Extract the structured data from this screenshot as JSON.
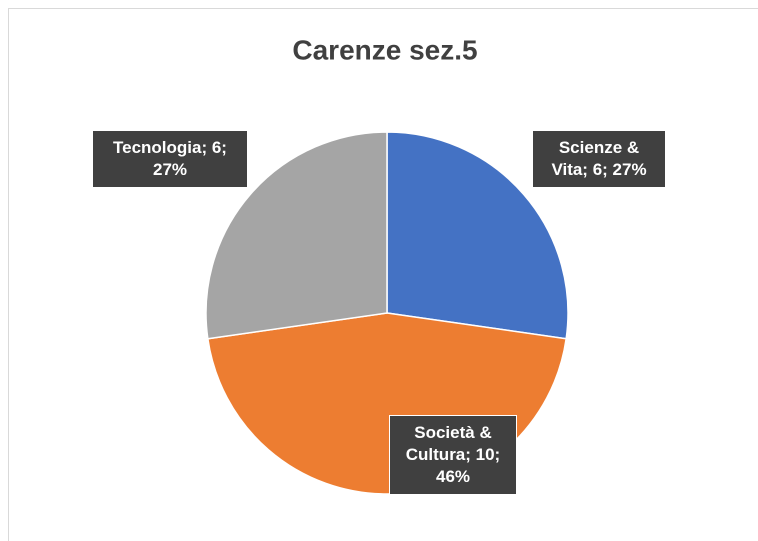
{
  "chart_data": {
    "type": "pie",
    "title": "Carenze sez.5",
    "categories": [
      "Scienze & Vita",
      "Società & Cultura",
      "Tecnologia"
    ],
    "values": [
      6,
      10,
      6
    ],
    "value_labels": [
      "Scienze & Vita; 6; 27%",
      "Società & Cultura; 10; 46%",
      "Tecnologia; 6; 27%"
    ],
    "colors": [
      "#4472c4",
      "#ed7d31",
      "#a5a5a5"
    ]
  }
}
